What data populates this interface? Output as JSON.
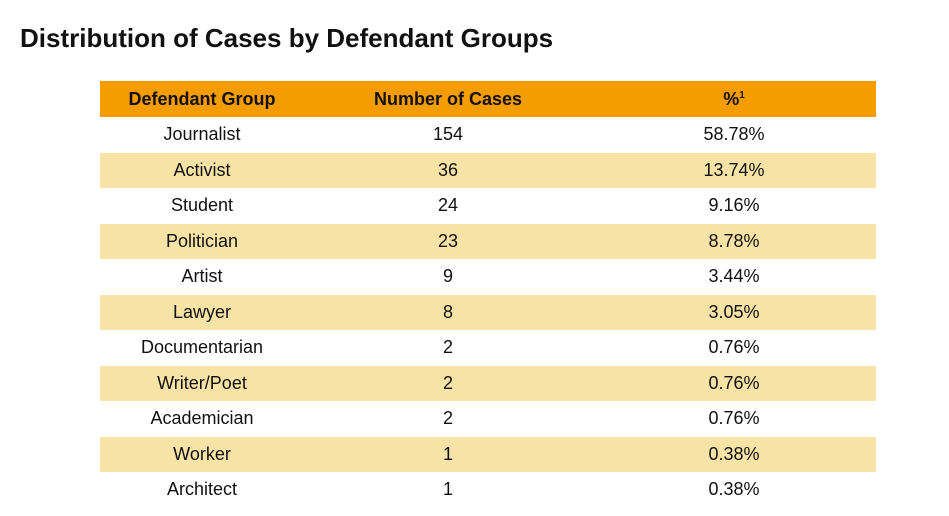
{
  "title": "Distribution of Cases by Defendant Groups",
  "colors": {
    "header_background": "#f59c00",
    "shaded_row_background": "#f8e3a6"
  },
  "table": {
    "headers": {
      "group": "Defendant Group",
      "cases": "Number of Cases",
      "percent": "%",
      "percent_footnote_marker": "1"
    },
    "rows": [
      {
        "group": "Journalist",
        "cases": "154",
        "percent": "58.78%"
      },
      {
        "group": "Activist",
        "cases": "36",
        "percent": "13.74%"
      },
      {
        "group": "Student",
        "cases": "24",
        "percent": "9.16%"
      },
      {
        "group": "Politician",
        "cases": "23",
        "percent": "8.78%"
      },
      {
        "group": "Artist",
        "cases": "9",
        "percent": "3.44%"
      },
      {
        "group": "Lawyer",
        "cases": "8",
        "percent": "3.05%"
      },
      {
        "group": "Documentarian",
        "cases": "2",
        "percent": "0.76%"
      },
      {
        "group": "Writer/Poet",
        "cases": "2",
        "percent": "0.76%"
      },
      {
        "group": "Academician",
        "cases": "2",
        "percent": "0.76%"
      },
      {
        "group": "Worker",
        "cases": "1",
        "percent": "0.38%"
      },
      {
        "group": "Architect",
        "cases": "1",
        "percent": "0.38%"
      }
    ]
  }
}
